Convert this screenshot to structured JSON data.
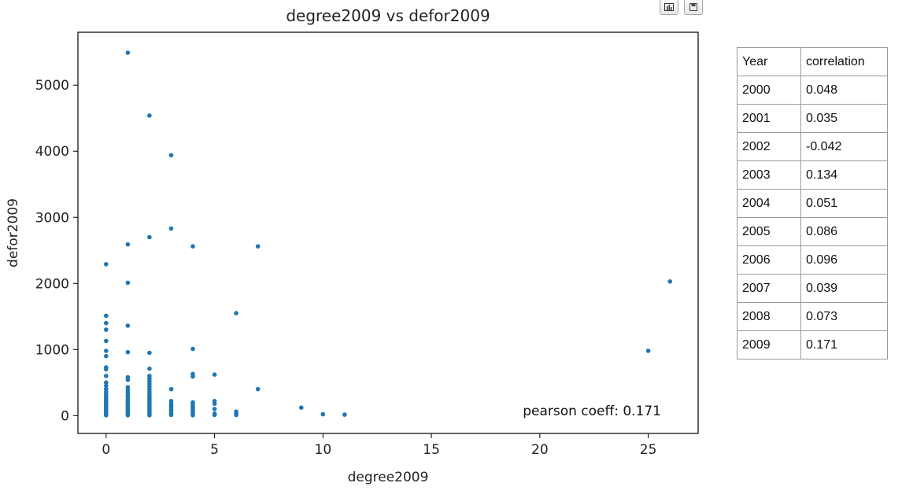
{
  "toolbar": {
    "icons": [
      "bar-chart-icon",
      "save-icon"
    ]
  },
  "chart_data": {
    "type": "scatter",
    "title": "degree2009 vs defor2009",
    "xlabel": "degree2009",
    "ylabel": "defor2009",
    "xlim": [
      -1.3,
      27.3
    ],
    "ylim": [
      -270,
      5800
    ],
    "xticks": [
      0,
      5,
      10,
      15,
      20,
      25
    ],
    "yticks": [
      0,
      1000,
      2000,
      3000,
      4000,
      5000
    ],
    "color": "#1f77b4",
    "annotation": "pearson coeff: 0.171",
    "grid": false,
    "points": [
      [
        0,
        2290
      ],
      [
        0,
        1510
      ],
      [
        0,
        1400
      ],
      [
        0,
        1300
      ],
      [
        0,
        1130
      ],
      [
        0,
        980
      ],
      [
        0,
        900
      ],
      [
        0,
        730
      ],
      [
        0,
        700
      ],
      [
        0,
        600
      ],
      [
        0,
        500
      ],
      [
        0,
        450
      ],
      [
        0,
        400
      ],
      [
        0,
        360
      ],
      [
        0,
        320
      ],
      [
        0,
        290
      ],
      [
        0,
        260
      ],
      [
        0,
        230
      ],
      [
        0,
        200
      ],
      [
        0,
        180
      ],
      [
        0,
        160
      ],
      [
        0,
        140
      ],
      [
        0,
        120
      ],
      [
        0,
        100
      ],
      [
        0,
        80
      ],
      [
        0,
        60
      ],
      [
        0,
        40
      ],
      [
        0,
        20
      ],
      [
        0,
        5
      ],
      [
        1,
        5490
      ],
      [
        1,
        2590
      ],
      [
        1,
        2010
      ],
      [
        1,
        1360
      ],
      [
        1,
        960
      ],
      [
        1,
        580
      ],
      [
        1,
        540
      ],
      [
        1,
        430
      ],
      [
        1,
        390
      ],
      [
        1,
        350
      ],
      [
        1,
        310
      ],
      [
        1,
        280
      ],
      [
        1,
        250
      ],
      [
        1,
        220
      ],
      [
        1,
        190
      ],
      [
        1,
        160
      ],
      [
        1,
        140
      ],
      [
        1,
        120
      ],
      [
        1,
        100
      ],
      [
        1,
        80
      ],
      [
        1,
        60
      ],
      [
        1,
        40
      ],
      [
        1,
        20
      ],
      [
        1,
        5
      ],
      [
        2,
        4540
      ],
      [
        2,
        2700
      ],
      [
        2,
        950
      ],
      [
        2,
        710
      ],
      [
        2,
        600
      ],
      [
        2,
        560
      ],
      [
        2,
        520
      ],
      [
        2,
        480
      ],
      [
        2,
        440
      ],
      [
        2,
        400
      ],
      [
        2,
        360
      ],
      [
        2,
        320
      ],
      [
        2,
        290
      ],
      [
        2,
        260
      ],
      [
        2,
        230
      ],
      [
        2,
        200
      ],
      [
        2,
        170
      ],
      [
        2,
        140
      ],
      [
        2,
        110
      ],
      [
        2,
        80
      ],
      [
        2,
        50
      ],
      [
        2,
        20
      ],
      [
        2,
        5
      ],
      [
        3,
        3940
      ],
      [
        3,
        2830
      ],
      [
        3,
        400
      ],
      [
        3,
        220
      ],
      [
        3,
        180
      ],
      [
        3,
        150
      ],
      [
        3,
        120
      ],
      [
        3,
        90
      ],
      [
        3,
        60
      ],
      [
        3,
        30
      ],
      [
        3,
        10
      ],
      [
        4,
        2560
      ],
      [
        4,
        1010
      ],
      [
        4,
        630
      ],
      [
        4,
        590
      ],
      [
        4,
        200
      ],
      [
        4,
        170
      ],
      [
        4,
        140
      ],
      [
        4,
        110
      ],
      [
        4,
        80
      ],
      [
        4,
        50
      ],
      [
        4,
        20
      ],
      [
        4,
        5
      ],
      [
        5,
        620
      ],
      [
        5,
        220
      ],
      [
        5,
        180
      ],
      [
        5,
        100
      ],
      [
        5,
        30
      ],
      [
        5,
        10
      ],
      [
        6,
        1550
      ],
      [
        6,
        60
      ],
      [
        6,
        30
      ],
      [
        6,
        10
      ],
      [
        7,
        2560
      ],
      [
        7,
        400
      ],
      [
        9,
        120
      ],
      [
        10,
        20
      ],
      [
        11,
        15
      ],
      [
        25,
        980
      ],
      [
        26,
        2030
      ]
    ]
  },
  "table": {
    "headers": [
      "Year",
      "correlation"
    ],
    "rows": [
      [
        "2000",
        "0.048"
      ],
      [
        "2001",
        "0.035"
      ],
      [
        "2002",
        "-0.042"
      ],
      [
        "2003",
        "0.134"
      ],
      [
        "2004",
        "0.051"
      ],
      [
        "2005",
        "0.086"
      ],
      [
        "2006",
        "0.096"
      ],
      [
        "2007",
        "0.039"
      ],
      [
        "2008",
        "0.073"
      ],
      [
        "2009",
        "0.171"
      ]
    ]
  }
}
